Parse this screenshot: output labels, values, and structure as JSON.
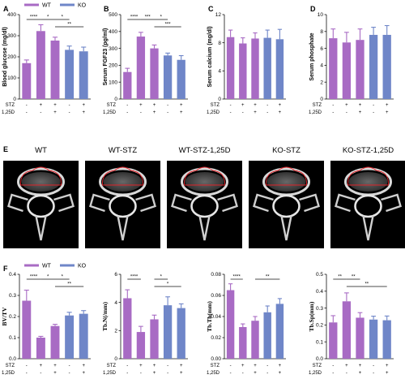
{
  "colors": {
    "wt": "#a86bc4",
    "ko": "#6f86c8",
    "sig": "#111111",
    "panel_bg": "#000000"
  },
  "legend": [
    {
      "label": "WT",
      "color": "#a86bc4"
    },
    {
      "label": "KO",
      "color": "#6f86c8"
    }
  ],
  "condition_rows": {
    "stz_label": "STZ",
    "d_label": "1,25D",
    "stz": [
      "-",
      "+",
      "+",
      "-",
      "+"
    ],
    "d": [
      "-",
      "-",
      "+",
      "-",
      "+"
    ]
  },
  "panel_e": {
    "label": "E",
    "titles": [
      "WT",
      "WT-STZ",
      "WT-STZ-1,25D",
      "KO-STZ",
      "KO-STZ-1,25D"
    ]
  },
  "chart_data": [
    {
      "panel": "A",
      "type": "bar",
      "ylabel": "Blood glucose (mg/dl)",
      "ylim": [
        0,
        400
      ],
      "yticks": [
        0,
        100,
        200,
        300,
        400
      ],
      "values": [
        170,
        322,
        277,
        233,
        226
      ],
      "errors": [
        15,
        30,
        16,
        18,
        20
      ],
      "colors": [
        "wt",
        "wt",
        "wt",
        "ko",
        "ko"
      ],
      "sig": [
        {
          "from": 0,
          "to": 1,
          "label": "****",
          "level": 0
        },
        {
          "from": 1,
          "to": 2,
          "label": "*",
          "level": 0
        },
        {
          "from": 2,
          "to": 3,
          "label": "*",
          "level": 0
        },
        {
          "from": 2,
          "to": 4,
          "label": "**",
          "level": 1
        }
      ]
    },
    {
      "panel": "B",
      "type": "bar",
      "ylabel": "Serum FGF23 (pg/ml)",
      "ylim": [
        0,
        500
      ],
      "yticks": [
        0,
        100,
        200,
        300,
        400,
        500
      ],
      "values": [
        160,
        370,
        300,
        258,
        232
      ],
      "errors": [
        22,
        25,
        20,
        14,
        25
      ],
      "colors": [
        "wt",
        "wt",
        "wt",
        "ko",
        "ko"
      ],
      "sig": [
        {
          "from": 0,
          "to": 1,
          "label": "****",
          "level": 0
        },
        {
          "from": 1,
          "to": 2,
          "label": "***",
          "level": 0
        },
        {
          "from": 2,
          "to": 3,
          "label": "*",
          "level": 0
        },
        {
          "from": 2,
          "to": 4,
          "label": "***",
          "level": 1
        }
      ]
    },
    {
      "panel": "C",
      "type": "bar",
      "ylabel": "Serum calcium (mg/dl)",
      "ylim": [
        0,
        12
      ],
      "yticks": [
        0,
        4,
        8,
        12
      ],
      "values": [
        8.8,
        7.9,
        8.6,
        8.7,
        8.5
      ],
      "errors": [
        1.0,
        0.8,
        0.8,
        1.1,
        1.4
      ],
      "colors": [
        "wt",
        "wt",
        "wt",
        "ko",
        "ko"
      ],
      "sig": []
    },
    {
      "panel": "D",
      "type": "bar",
      "ylabel": "Serum phosphate",
      "ylim": [
        0,
        10
      ],
      "yticks": [
        0,
        2,
        4,
        6,
        8,
        10
      ],
      "values": [
        7.2,
        6.7,
        7.0,
        7.6,
        7.6
      ],
      "errors": [
        1.1,
        1.2,
        1.3,
        0.9,
        1.1
      ],
      "colors": [
        "wt",
        "wt",
        "wt",
        "ko",
        "ko"
      ],
      "sig": []
    },
    {
      "panel": "F",
      "type": "bar",
      "ylabel": "BV/TV",
      "ylim": [
        0,
        0.4
      ],
      "yticks": [
        "0.0",
        "0.1",
        "0.2",
        "0.3",
        "0.4"
      ],
      "values": [
        0.275,
        0.1,
        0.155,
        0.205,
        0.213
      ],
      "errors": [
        0.05,
        0.006,
        0.008,
        0.015,
        0.015
      ],
      "colors": [
        "wt",
        "wt",
        "wt",
        "ko",
        "ko"
      ],
      "sig": [
        {
          "from": 0,
          "to": 1,
          "label": "****",
          "level": 0
        },
        {
          "from": 1,
          "to": 2,
          "label": "*",
          "level": 0
        },
        {
          "from": 2,
          "to": 3,
          "label": "*",
          "level": 0
        },
        {
          "from": 2,
          "to": 4,
          "label": "**",
          "level": 1
        }
      ]
    },
    {
      "panel": "",
      "type": "bar",
      "ylabel": "Tb.N(/mm)",
      "ylim": [
        0,
        6
      ],
      "yticks": [
        0,
        2,
        4,
        6
      ],
      "values": [
        4.3,
        1.9,
        2.8,
        3.8,
        3.6
      ],
      "errors": [
        0.6,
        0.4,
        0.3,
        0.6,
        0.3
      ],
      "colors": [
        "wt",
        "wt",
        "wt",
        "ko",
        "ko"
      ],
      "sig": [
        {
          "from": 0,
          "to": 1,
          "label": "****",
          "level": 0
        },
        {
          "from": 2,
          "to": 3,
          "label": "*",
          "level": 0
        },
        {
          "from": 2,
          "to": 4,
          "label": "*",
          "level": 1
        }
      ]
    },
    {
      "panel": "",
      "type": "bar",
      "ylabel": "Tb.Th(mm)",
      "ylim": [
        0,
        0.08
      ],
      "yticks": [
        "0.00",
        "0.02",
        "0.04",
        "0.06",
        "0.08"
      ],
      "values": [
        0.065,
        0.03,
        0.036,
        0.044,
        0.052
      ],
      "errors": [
        0.006,
        0.003,
        0.004,
        0.006,
        0.005
      ],
      "colors": [
        "wt",
        "wt",
        "wt",
        "ko",
        "ko"
      ],
      "sig": [
        {
          "from": 0,
          "to": 1,
          "label": "****",
          "level": 0
        },
        {
          "from": 2,
          "to": 4,
          "label": "**",
          "level": 0
        }
      ]
    },
    {
      "panel": "",
      "type": "bar",
      "ylabel": "Tb.Sp(mm)",
      "ylim": [
        0,
        0.5
      ],
      "yticks": [
        "0.0",
        "0.1",
        "0.2",
        "0.3",
        "0.4",
        "0.5"
      ],
      "values": [
        0.215,
        0.34,
        0.243,
        0.232,
        0.228
      ],
      "errors": [
        0.04,
        0.05,
        0.03,
        0.02,
        0.025
      ],
      "colors": [
        "wt",
        "wt",
        "wt",
        "ko",
        "ko"
      ],
      "sig": [
        {
          "from": 0,
          "to": 1,
          "label": "**",
          "level": 0
        },
        {
          "from": 1,
          "to": 2,
          "label": "**",
          "level": 0
        },
        {
          "from": 1,
          "to": 4,
          "label": "**",
          "level": 1
        }
      ]
    }
  ]
}
